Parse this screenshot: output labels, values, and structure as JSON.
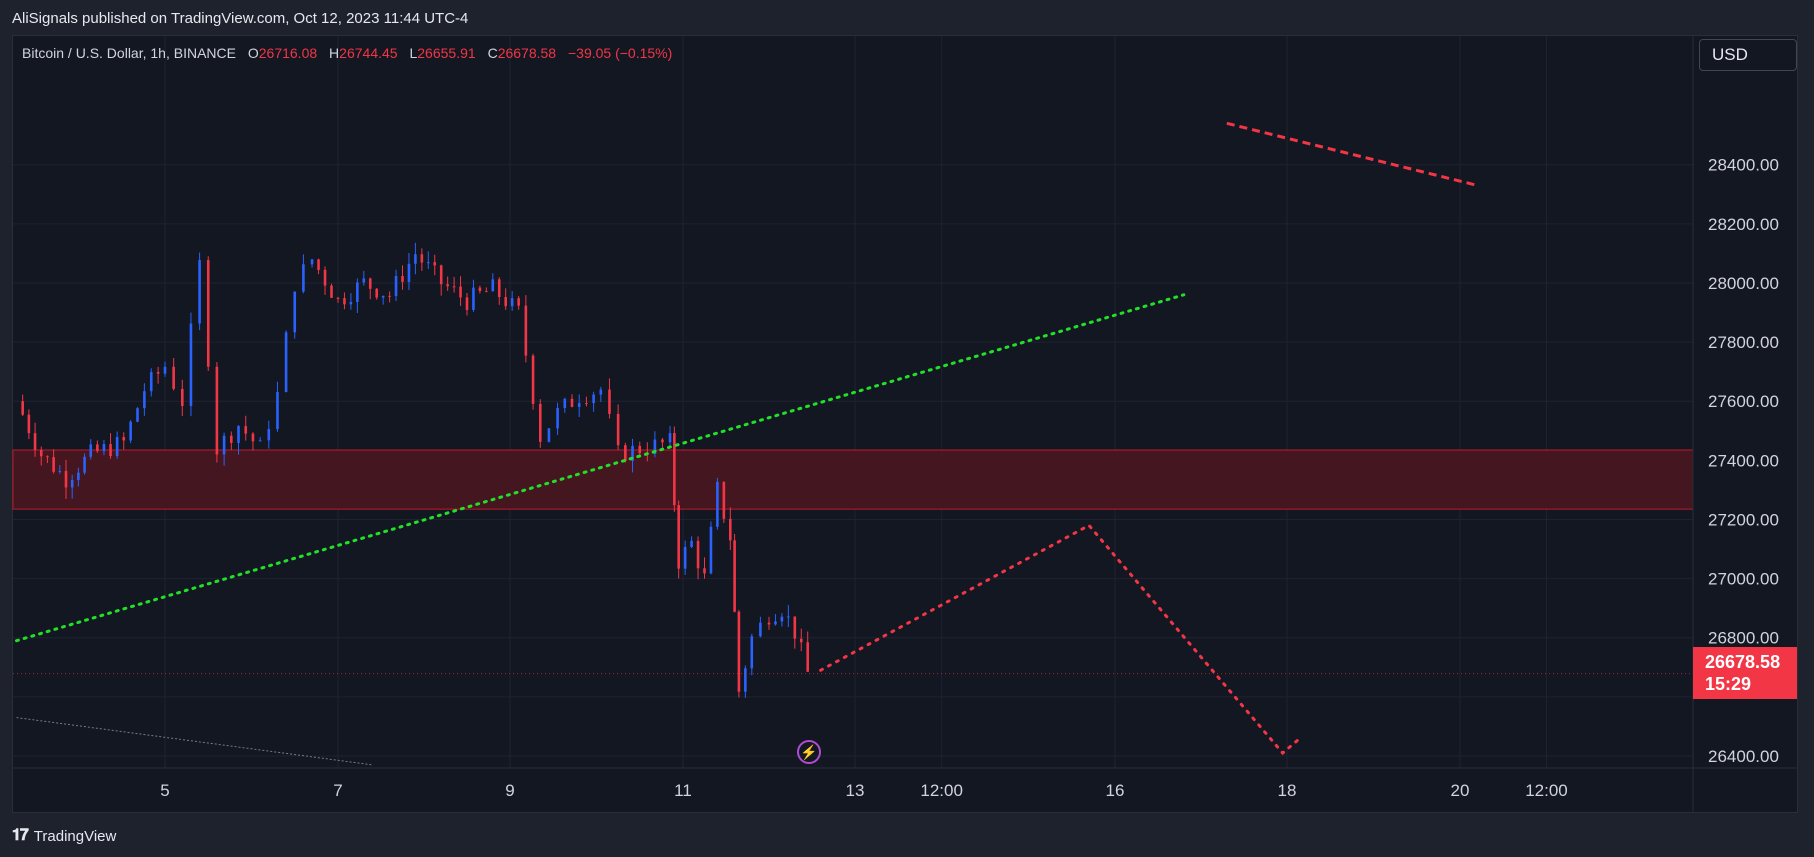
{
  "header": {
    "published_by": "AliSignals published on TradingView.com, Oct 12, 2023 11:44 UTC-4"
  },
  "legend": {
    "symbol": "Bitcoin / U.S. Dollar, 1h, BINANCE",
    "open_label": "O",
    "open": "26716.08",
    "high_label": "H",
    "high": "26744.45",
    "low_label": "L",
    "low": "26655.91",
    "close_label": "C",
    "close": "26678.58",
    "change": "−39.05 (−0.15%)"
  },
  "currency_button": {
    "label": "USD"
  },
  "last_price": {
    "value": "26678.58",
    "countdown": "15:29"
  },
  "footer": {
    "brand": "TradingView"
  },
  "colors": {
    "up": "#2962ff",
    "down": "#f23645",
    "zone": "#4a1620",
    "trend_up": "#22e028",
    "projection": "#f23645",
    "background": "#131722"
  },
  "chart_data": {
    "type": "candlestick",
    "title": "Bitcoin / U.S. Dollar, 1h, BINANCE",
    "x_ticks": [
      "5",
      "7",
      "9",
      "11",
      "13",
      "12:00",
      "16",
      "18",
      "20",
      "12:00"
    ],
    "y_ticks": [
      26400,
      26600,
      26800,
      27000,
      27200,
      27400,
      27600,
      27800,
      28000,
      28200,
      28400
    ],
    "y_tick_labels": [
      "26400.00",
      "26800.00",
      "27000.00",
      "27200.00",
      "27400.00",
      "27600.00",
      "27800.00",
      "28000.00",
      "28200.00",
      "28400.00"
    ],
    "ylim": [
      26365,
      28525
    ],
    "price_path": [
      [
        3.2,
        27600
      ],
      [
        3.5,
        27420
      ],
      [
        3.8,
        27340
      ],
      [
        4.1,
        27420
      ],
      [
        4.5,
        27460
      ],
      [
        4.75,
        27640
      ],
      [
        5.0,
        27720
      ],
      [
        5.2,
        27600
      ],
      [
        5.4,
        28060
      ],
      [
        5.6,
        27440
      ],
      [
        5.85,
        27520
      ],
      [
        6.1,
        27440
      ],
      [
        6.3,
        27620
      ],
      [
        6.5,
        28000
      ],
      [
        6.7,
        28080
      ],
      [
        7.0,
        27940
      ],
      [
        7.3,
        28000
      ],
      [
        7.6,
        27960
      ],
      [
        7.9,
        28100
      ],
      [
        8.2,
        28000
      ],
      [
        8.5,
        27940
      ],
      [
        8.8,
        27980
      ],
      [
        9.1,
        27900
      ],
      [
        9.35,
        27480
      ],
      [
        9.55,
        27560
      ],
      [
        9.8,
        27620
      ],
      [
        10.05,
        27640
      ],
      [
        10.25,
        27420
      ],
      [
        10.5,
        27440
      ],
      [
        10.85,
        27460
      ],
      [
        10.95,
        27060
      ],
      [
        11.1,
        27120
      ],
      [
        11.25,
        27000
      ],
      [
        11.4,
        27300
      ],
      [
        11.55,
        27140
      ],
      [
        11.65,
        26620
      ],
      [
        11.8,
        26800
      ],
      [
        12.0,
        26880
      ],
      [
        12.15,
        26900
      ],
      [
        12.3,
        26820
      ],
      [
        12.45,
        26680
      ]
    ],
    "resistance_zone": [
      27235,
      27435
    ],
    "trend_line_green": [
      [
        3.2,
        26790
      ],
      [
        16.8,
        27960
      ]
    ],
    "projection_red": [
      [
        12.6,
        26690
      ],
      [
        15.7,
        27180
      ],
      [
        17.95,
        26410
      ],
      [
        18.15,
        26460
      ]
    ],
    "trend_line_red_top": [
      [
        17.3,
        28540
      ],
      [
        20.2,
        28330
      ]
    ],
    "support_line_grey": [
      [
        3.2,
        26530
      ],
      [
        7.4,
        26370
      ]
    ],
    "last_price": 26678.58
  }
}
